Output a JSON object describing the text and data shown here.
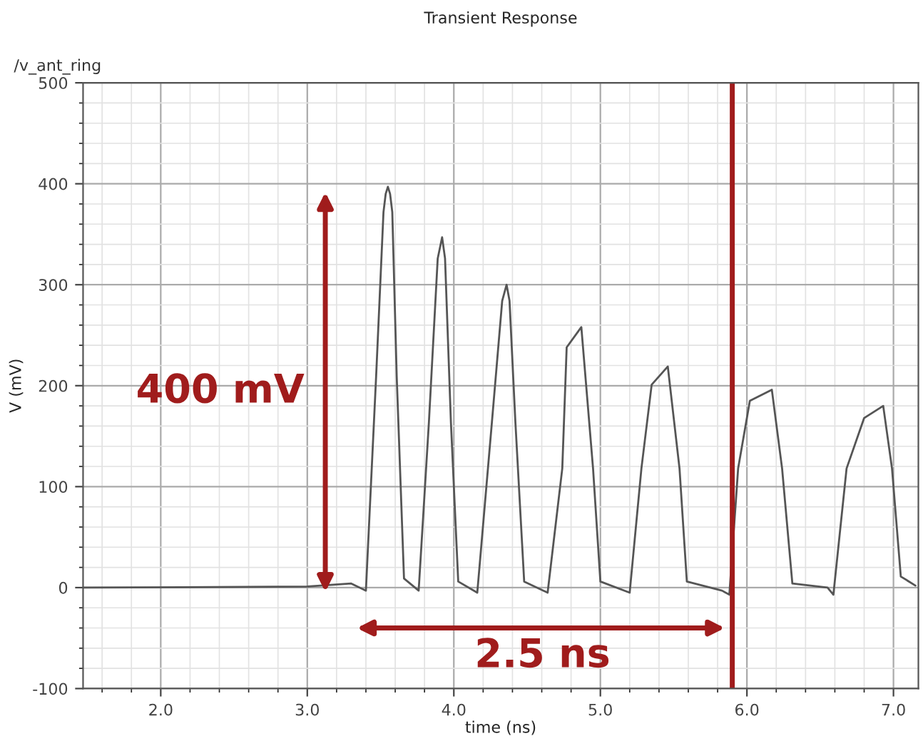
{
  "chart_data": {
    "type": "line",
    "title": "Transient Response",
    "xlabel": "time (ns)",
    "ylabel": "V (mV)",
    "series": [
      {
        "name": "/v_ant_ring",
        "color": "#555555",
        "x": [
          1.47,
          3.0,
          3.3,
          3.4,
          3.47,
          3.52,
          3.535,
          3.55,
          3.565,
          3.58,
          3.61,
          3.66,
          3.76,
          3.83,
          3.89,
          3.92,
          3.94,
          3.98,
          4.03,
          4.16,
          4.26,
          4.33,
          4.36,
          4.38,
          4.42,
          4.48,
          4.64,
          4.74,
          4.77,
          4.87,
          4.95,
          5.0,
          5.2,
          5.28,
          5.35,
          5.46,
          5.54,
          5.59,
          5.83,
          5.88,
          5.94,
          6.02,
          6.17,
          6.24,
          6.31,
          6.55,
          6.59,
          6.68,
          6.8,
          6.93,
          6.99,
          7.05,
          7.15
        ],
        "values": [
          0,
          1,
          4,
          -3,
          210,
          372,
          390,
          397,
          390,
          372,
          210,
          9,
          -3,
          164,
          326,
          347,
          326,
          164,
          6,
          -5,
          164,
          284,
          300,
          284,
          164,
          6,
          -5,
          118,
          238,
          258,
          118,
          6,
          -5,
          118,
          201,
          219,
          118,
          6,
          -3,
          -7,
          118,
          185,
          196,
          118,
          4,
          0,
          -7,
          118,
          168,
          180,
          118,
          11,
          2
        ]
      }
    ],
    "xlim": [
      1.47,
      7.17
    ],
    "ylim": [
      -100,
      500
    ],
    "xticks": [
      {
        "value": 2,
        "label": "2.0"
      },
      {
        "value": 3,
        "label": "3.0"
      },
      {
        "value": 4,
        "label": "4.0"
      },
      {
        "value": 5,
        "label": "5.0"
      },
      {
        "value": 6,
        "label": "6.0"
      },
      {
        "value": 7,
        "label": "7.0"
      }
    ],
    "yticks": [
      -100,
      0,
      100,
      200,
      300,
      400,
      500
    ],
    "grid": true,
    "marker": "none",
    "line_style": "solid",
    "ref_lines": [
      {
        "axis": "x",
        "value": 5.9,
        "color": "#a01c1c",
        "line_style": "solid"
      }
    ],
    "annotations": [
      "400 mV",
      "2.5 ns"
    ]
  }
}
